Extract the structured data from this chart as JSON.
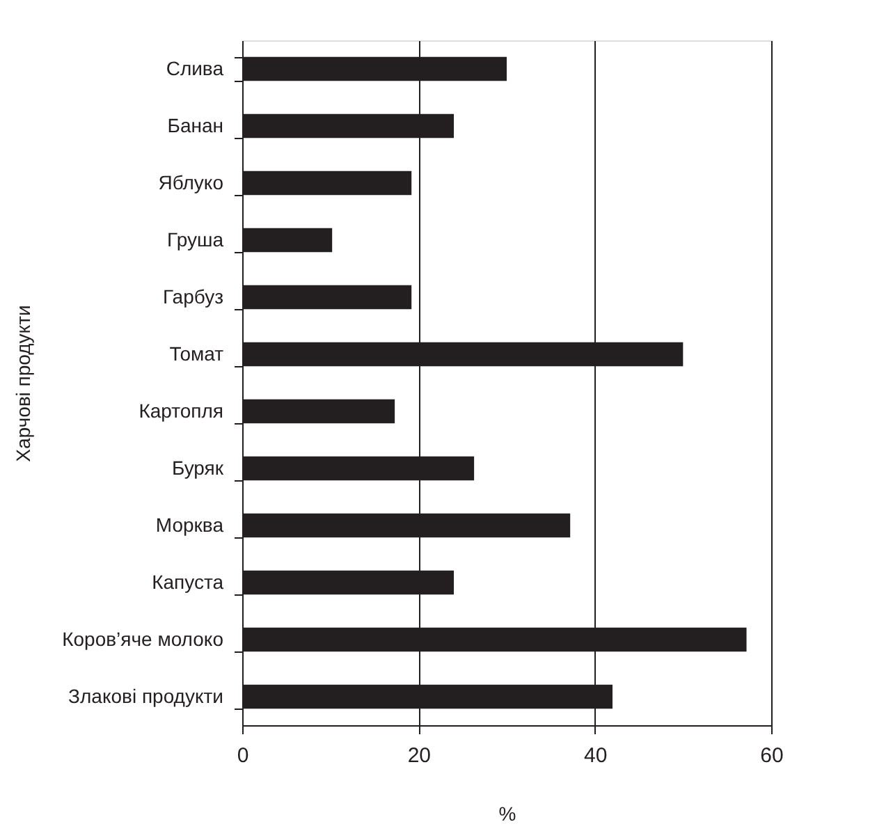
{
  "chart_data": {
    "type": "bar",
    "orientation": "horizontal",
    "xlabel": "%",
    "ylabel": "Харчові продукти",
    "categories": [
      "Слива",
      "Банан",
      "Яблуко",
      "Груша",
      "Гарбуз",
      "Томат",
      "Картопля",
      "Буряк",
      "Морква",
      "Капуста",
      "Коров’яче молоко",
      "Злакові продукти"
    ],
    "values": [
      30,
      24,
      19.2,
      10.2,
      19.2,
      50,
      17.3,
      26.3,
      37.2,
      24,
      57.2,
      42
    ],
    "color": "#231f20",
    "xlim": [
      0,
      60
    ],
    "xticks": [
      0,
      20,
      40,
      60
    ],
    "grid": "x"
  }
}
